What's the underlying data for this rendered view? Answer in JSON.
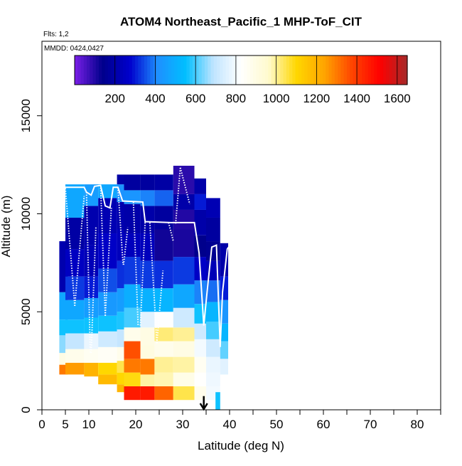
{
  "chart_data": {
    "type": "heatmap",
    "title": "ATOM4 Northeast_Pacific_1 MHP-ToF_CIT",
    "flights_label": "Flts: 1,2",
    "dates_label": "MMDD: 0424,0427",
    "xlabel": "Latitude (deg N)",
    "ylabel": "Altitude (m)",
    "xlim": [
      0,
      85
    ],
    "ylim": [
      0,
      18800
    ],
    "x_ticks": [
      0,
      5,
      10,
      20,
      30,
      40,
      50,
      60,
      70,
      80
    ],
    "x_minor_ticks": [
      15,
      25,
      35,
      45,
      55,
      65,
      75,
      85
    ],
    "y_ticks": [
      0,
      5000,
      10000,
      15000
    ],
    "colorbar": {
      "min": 0,
      "max": 1650,
      "tick_values": [
        200,
        400,
        600,
        800,
        1000,
        1200,
        1400,
        1600
      ],
      "colors": [
        "#7b1fe8",
        "#00008b",
        "#0000cd",
        "#1e90ff",
        "#00bfff",
        "#bfe4ff",
        "#ffffff",
        "#fffacd",
        "#ffd700",
        "#ffa500",
        "#ff4500",
        "#ff0000",
        "#a52a2a"
      ]
    },
    "arrow_marker": {
      "latitude": 34.5,
      "altitude": 700
    },
    "flight_track": [
      [
        5,
        11350
      ],
      [
        9,
        11350
      ],
      [
        9.5,
        11100
      ],
      [
        10.5,
        10950
      ],
      [
        11.2,
        11400
      ],
      [
        12.5,
        11450
      ],
      [
        13.5,
        10400
      ],
      [
        14.5,
        10300
      ],
      [
        15.2,
        11350
      ],
      [
        16.2,
        11350
      ],
      [
        17.2,
        10650
      ],
      [
        21.5,
        10600
      ],
      [
        22,
        9600
      ],
      [
        27.5,
        9550
      ],
      [
        32.5,
        9550
      ],
      [
        33.5,
        8000
      ],
      [
        34.5,
        4300
      ],
      [
        35.2,
        6000
      ],
      [
        36.2,
        8300
      ],
      [
        37.2,
        8400
      ],
      [
        38,
        3200
      ],
      [
        38.5,
        6000
      ],
      [
        39.5,
        8200
      ],
      [
        39.8,
        8300
      ]
    ],
    "profiles": [
      {
        "lat_start": 5,
        "lat_end": 7,
        "alt_top": 11300,
        "alt_bottom": 5300
      },
      {
        "lat_start": 7,
        "lat_end": 9,
        "alt_top": 5300,
        "alt_bottom": 10900
      },
      {
        "lat_start": 9.5,
        "lat_end": 10.3,
        "alt_top": 11100,
        "alt_bottom": 2900
      },
      {
        "lat_start": 10.5,
        "lat_end": 11.5,
        "alt_top": 2900,
        "alt_bottom": 9300
      },
      {
        "lat_start": 12.5,
        "lat_end": 13.5,
        "alt_top": 11450,
        "alt_bottom": 4800
      },
      {
        "lat_start": 13.5,
        "lat_end": 14.8,
        "alt_top": 4800,
        "alt_bottom": 10300
      },
      {
        "lat_start": 16.2,
        "lat_end": 17.3,
        "alt_top": 11350,
        "alt_bottom": 7400
      },
      {
        "lat_start": 17.4,
        "lat_end": 18.3,
        "alt_top": 7400,
        "alt_bottom": 9300
      },
      {
        "lat_start": 19.5,
        "lat_end": 20.5,
        "alt_top": 10600,
        "alt_bottom": 4300
      },
      {
        "lat_start": 21,
        "lat_end": 22,
        "alt_top": 4300,
        "alt_bottom": 9600
      },
      {
        "lat_start": 23,
        "lat_end": 24.5,
        "alt_top": 9550,
        "alt_bottom": 3400
      },
      {
        "lat_start": 24.5,
        "lat_end": 25.8,
        "alt_top": 3400,
        "alt_bottom": 7100
      },
      {
        "lat_start": 27,
        "lat_end": 28,
        "alt_top": 9550,
        "alt_bottom": 8600
      },
      {
        "lat_start": 28.5,
        "lat_end": 29.5,
        "alt_top": 9500,
        "alt_bottom": 12350
      },
      {
        "lat_start": 29.5,
        "lat_end": 31.5,
        "alt_top": 12350,
        "alt_bottom": 10500
      }
    ],
    "columns": [
      {
        "x0": 3.7,
        "x1": 5.5,
        "segments": [
          [
            1800,
            2300,
            1300
          ],
          [
            2300,
            2900,
            900
          ],
          [
            2900,
            3800,
            650
          ],
          [
            3800,
            4600,
            560
          ],
          [
            4600,
            6000,
            480
          ],
          [
            6000,
            8600,
            210
          ]
        ]
      },
      {
        "x0": 5.0,
        "x1": 9.0,
        "segments": [
          [
            1800,
            2400,
            1250
          ],
          [
            2400,
            3100,
            880
          ],
          [
            3100,
            3900,
            700
          ],
          [
            3900,
            4600,
            560
          ],
          [
            4600,
            5600,
            480
          ],
          [
            5600,
            6800,
            330
          ],
          [
            6800,
            8200,
            250
          ],
          [
            8200,
            9800,
            190
          ],
          [
            9800,
            11500,
            480
          ]
        ]
      },
      {
        "x0": 9.0,
        "x1": 12.0,
        "segments": [
          [
            1700,
            2400,
            1200
          ],
          [
            2400,
            3100,
            860
          ],
          [
            3100,
            3900,
            780
          ],
          [
            3900,
            4700,
            560
          ],
          [
            4700,
            5700,
            450
          ],
          [
            5700,
            6800,
            300
          ],
          [
            6800,
            8400,
            230
          ],
          [
            8400,
            10400,
            210
          ],
          [
            10400,
            11500,
            450
          ]
        ]
      },
      {
        "x0": 12.0,
        "x1": 16.0,
        "segments": [
          [
            1300,
            1800,
            1180
          ],
          [
            1800,
            2400,
            1100
          ],
          [
            2400,
            3200,
            850
          ],
          [
            3200,
            4000,
            720
          ],
          [
            4000,
            4800,
            560
          ],
          [
            4800,
            6000,
            440
          ],
          [
            6000,
            7200,
            350
          ],
          [
            7200,
            9000,
            260
          ],
          [
            9000,
            10800,
            220
          ],
          [
            10800,
            11500,
            480
          ]
        ]
      },
      {
        "x0": 16.0,
        "x1": 17.5,
        "segments": [
          [
            900,
            1300,
            1200
          ],
          [
            1300,
            1900,
            1100
          ],
          [
            1900,
            2500,
            1050
          ],
          [
            2500,
            3200,
            880
          ],
          [
            3200,
            4100,
            700
          ],
          [
            4100,
            5000,
            570
          ],
          [
            5000,
            6200,
            450
          ],
          [
            6200,
            7600,
            320
          ],
          [
            7600,
            9200,
            240
          ],
          [
            9200,
            10600,
            210
          ],
          [
            10600,
            11500,
            420
          ],
          [
            11500,
            12000,
            190
          ]
        ]
      },
      {
        "x0": 17.5,
        "x1": 21.0,
        "segments": [
          [
            500,
            1200,
            1460
          ],
          [
            1200,
            1900,
            1090
          ],
          [
            1900,
            2600,
            1300
          ],
          [
            2600,
            3500,
            1360
          ],
          [
            3500,
            4200,
            880
          ],
          [
            4200,
            5200,
            600
          ],
          [
            5200,
            6400,
            500
          ],
          [
            6400,
            7800,
            330
          ],
          [
            7800,
            9000,
            240
          ],
          [
            9000,
            10500,
            200
          ],
          [
            10500,
            11200,
            430
          ],
          [
            11200,
            12000,
            180
          ]
        ]
      },
      {
        "x0": 21.0,
        "x1": 24.0,
        "segments": [
          [
            500,
            1200,
            1460
          ],
          [
            1200,
            1800,
            990
          ],
          [
            1800,
            2600,
            1300
          ],
          [
            2600,
            3300,
            910
          ],
          [
            3300,
            4200,
            900
          ],
          [
            4200,
            5000,
            760
          ],
          [
            5000,
            6200,
            510
          ],
          [
            6200,
            7600,
            330
          ],
          [
            7600,
            9000,
            240
          ],
          [
            9000,
            10400,
            200
          ],
          [
            10400,
            11200,
            400
          ],
          [
            11200,
            12000,
            180
          ]
        ]
      },
      {
        "x0": 24.0,
        "x1": 28.0,
        "segments": [
          [
            500,
            1200,
            1330
          ],
          [
            1200,
            1900,
            980
          ],
          [
            1900,
            2700,
            1000
          ],
          [
            2700,
            3500,
            880
          ],
          [
            3500,
            4200,
            1020
          ],
          [
            4200,
            5000,
            820
          ],
          [
            5000,
            6200,
            520
          ],
          [
            6200,
            7600,
            320
          ],
          [
            7600,
            9200,
            120
          ],
          [
            9200,
            10400,
            180
          ],
          [
            10400,
            11200,
            370
          ],
          [
            11200,
            12000,
            190
          ]
        ]
      },
      {
        "x0": 28.0,
        "x1": 32.5,
        "segments": [
          [
            500,
            1200,
            1050
          ],
          [
            1200,
            1900,
            890
          ],
          [
            1900,
            2700,
            990
          ],
          [
            2700,
            3500,
            900
          ],
          [
            3500,
            4200,
            1000
          ],
          [
            4200,
            5200,
            720
          ],
          [
            5200,
            6400,
            480
          ],
          [
            6400,
            7800,
            330
          ],
          [
            7800,
            9200,
            110
          ],
          [
            9200,
            10200,
            100
          ],
          [
            10200,
            11000,
            200
          ],
          [
            11000,
            12450,
            90
          ]
        ]
      },
      {
        "x0": 32.5,
        "x1": 35.0,
        "segments": [
          [
            500,
            1200,
            880
          ],
          [
            1200,
            1900,
            830
          ],
          [
            1900,
            2700,
            860
          ],
          [
            2700,
            3600,
            800
          ],
          [
            3600,
            4400,
            720
          ],
          [
            4400,
            5400,
            560
          ],
          [
            5400,
            6600,
            400
          ],
          [
            6600,
            7800,
            260
          ],
          [
            7800,
            8900,
            140
          ],
          [
            8900,
            10200,
            200
          ],
          [
            10200,
            11000,
            300
          ],
          [
            11000,
            11800,
            200
          ]
        ]
      },
      {
        "x0": 35.0,
        "x1": 38.0,
        "segments": [
          [
            500,
            1200,
            800
          ],
          [
            1200,
            1900,
            790
          ],
          [
            1900,
            2700,
            780
          ],
          [
            2700,
            3600,
            720
          ],
          [
            3600,
            4500,
            600
          ],
          [
            4500,
            5500,
            520
          ],
          [
            5500,
            6600,
            380
          ],
          [
            6600,
            7600,
            230
          ],
          [
            7600,
            8600,
            150
          ],
          [
            8600,
            9800,
            180
          ],
          [
            9800,
            10800,
            220
          ]
        ]
      },
      {
        "x0": 38.0,
        "x1": 39.7,
        "segments": [
          [
            1800,
            2600,
            760
          ],
          [
            2600,
            3500,
            620
          ],
          [
            3500,
            4400,
            520
          ],
          [
            4400,
            5600,
            430
          ],
          [
            5600,
            6800,
            300
          ],
          [
            6800,
            8500,
            200
          ]
        ]
      },
      {
        "x0": 37.0,
        "x1": 38.0,
        "segments": [
          [
            0,
            900,
            560
          ]
        ]
      }
    ]
  }
}
